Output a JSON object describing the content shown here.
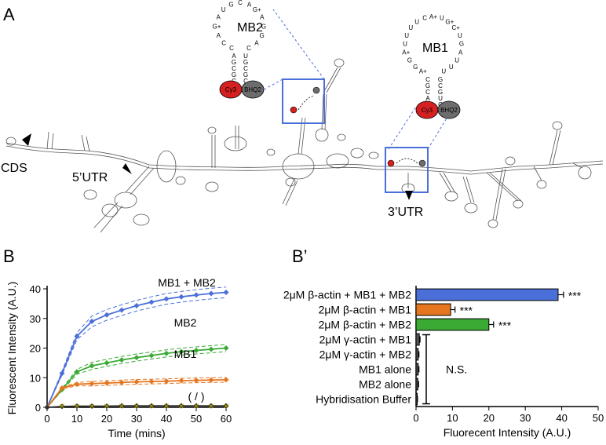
{
  "panels": {
    "a": "A",
    "b": "B",
    "bprime": "B’"
  },
  "structure": {
    "labels": {
      "cds": "CDS",
      "utr5": "5’UTR",
      "utr3": "3’UTR"
    },
    "mb1": {
      "name": "MB1",
      "fluor": "Cy3",
      "quencher": "BHQ2",
      "loop": [
        "A+",
        "G",
        "G",
        "A+",
        "U",
        "U",
        "U",
        "U",
        "C",
        "A+",
        "U",
        "G+",
        "C+",
        "U",
        "G",
        "A",
        "U",
        "U",
        "U"
      ],
      "stem_left": [
        "C",
        "G",
        "C",
        "A",
        "G",
        "C"
      ],
      "stem_right": [
        "G",
        "C",
        "G",
        "U",
        "C",
        "G"
      ]
    },
    "mb2": {
      "name": "MB2",
      "fluor": "Cy3",
      "quencher": "BHQ2",
      "loop": [
        "C",
        "C",
        "A",
        "G+",
        "A",
        "U",
        "G",
        "C",
        "A",
        "G+",
        "A",
        "G",
        "G",
        "A",
        "C"
      ],
      "stem_left": [
        "A",
        "G",
        "C",
        "G",
        "C",
        "G"
      ],
      "stem_right": [
        "U",
        "G",
        "C",
        "G",
        "C",
        "C"
      ]
    },
    "colors": {
      "fluor": "#d42020",
      "quencher": "#6d6d6d",
      "box": "#4a6fd8"
    }
  },
  "chart_data": [
    {
      "type": "line",
      "panel": "B",
      "xlabel": "Time (mins)",
      "ylabel": "Fluorescent Intensity (A.U.)",
      "xlim": [
        0,
        60
      ],
      "ylim": [
        0,
        40
      ],
      "xticks": [
        0,
        10,
        20,
        30,
        40,
        50,
        60
      ],
      "yticks": [
        0,
        10,
        20,
        30,
        40
      ],
      "x": [
        0,
        5,
        10,
        15,
        20,
        25,
        30,
        35,
        40,
        45,
        50,
        55,
        60
      ],
      "series": [
        {
          "name": "MB1 + MB2",
          "color": "#4a6fd8",
          "values": [
            0,
            11.5,
            24,
            29,
            31.2,
            32.8,
            34.3,
            35.5,
            36.6,
            37.3,
            37.9,
            38.4,
            38.8
          ],
          "ci_band": 1.8
        },
        {
          "name": "MB2",
          "color": "#3aaa35",
          "values": [
            0,
            6,
            12,
            14,
            15,
            16,
            16.8,
            17.5,
            18.2,
            18.8,
            19.2,
            19.6,
            20
          ],
          "ci_band": 1.2
        },
        {
          "name": "MB1",
          "color": "#e5751f",
          "values": [
            0,
            6.5,
            7.8,
            8,
            8.2,
            8.4,
            8.6,
            8.7,
            8.8,
            9,
            9.1,
            9.2,
            9.3
          ],
          "ci_band": 0.8
        },
        {
          "name": "",
          "color": "#333333",
          "values": [
            0,
            0.3,
            0.4,
            0.4,
            0.4,
            0.5,
            0.5,
            0.5,
            0.5,
            0.5,
            0.5,
            0.5,
            0.5
          ],
          "ci_band": 0
        }
      ],
      "annotations": [
        "( / )"
      ]
    },
    {
      "type": "bar",
      "panel": "B’",
      "orientation": "horizontal",
      "xlabel": "Fluorecent Intensity (A.U.)",
      "xlim": [
        0,
        50
      ],
      "xticks": [
        0,
        10,
        20,
        30,
        40,
        50
      ],
      "categories": [
        "2μM β-actin + MB1 + MB2",
        "2μM β-actin + MB1",
        "2μM β-actin + MB2",
        "2μM γ-actin + MB1",
        "2μM γ-actin + MB2",
        "MB1 alone",
        "MB2 alone",
        "Hybridisation Buffer"
      ],
      "values": [
        39,
        9.5,
        20,
        0.9,
        0.6,
        0.6,
        0.5,
        0.3
      ],
      "errors": [
        1.5,
        1.2,
        1.3,
        0.2,
        0.2,
        0.2,
        0.2,
        0.1
      ],
      "colors": [
        "#4a6fd8",
        "#e5751f",
        "#3aaa35",
        "#555555",
        "#555555",
        "#555555",
        "#555555",
        "#555555"
      ],
      "significance": [
        "***",
        "***",
        "***",
        "",
        "",
        "",
        "",
        ""
      ],
      "ns_label": "N.S."
    }
  ]
}
